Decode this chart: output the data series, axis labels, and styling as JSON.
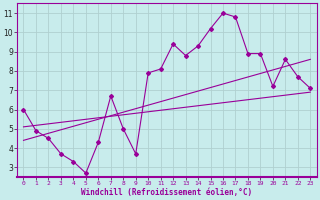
{
  "bg_color": "#c8ecec",
  "line_color": "#990099",
  "grid_color": "#b0d0d0",
  "xlim": [
    -0.5,
    23.5
  ],
  "ylim": [
    2.5,
    11.5
  ],
  "xticks": [
    0,
    1,
    2,
    3,
    4,
    5,
    6,
    7,
    8,
    9,
    10,
    11,
    12,
    13,
    14,
    15,
    16,
    17,
    18,
    19,
    20,
    21,
    22,
    23
  ],
  "yticks": [
    3,
    4,
    5,
    6,
    7,
    8,
    9,
    10,
    11
  ],
  "data_x": [
    0,
    1,
    2,
    3,
    4,
    5,
    6,
    7,
    8,
    9,
    10,
    11,
    12,
    13,
    14,
    15,
    16,
    17,
    18,
    19,
    20,
    21,
    22,
    23
  ],
  "data_y": [
    6.0,
    4.9,
    4.5,
    3.7,
    3.3,
    2.7,
    4.3,
    6.7,
    5.0,
    3.7,
    7.9,
    8.1,
    9.4,
    8.8,
    9.3,
    10.2,
    11.0,
    10.8,
    8.9,
    8.9,
    7.2,
    8.6,
    7.7,
    7.1
  ],
  "trend1_x": [
    0,
    23
  ],
  "trend1_y": [
    5.1,
    6.9
  ],
  "trend2_x": [
    0,
    23
  ],
  "trend2_y": [
    4.4,
    8.6
  ],
  "xlabel": "Windchill (Refroidissement éolien,°C)"
}
